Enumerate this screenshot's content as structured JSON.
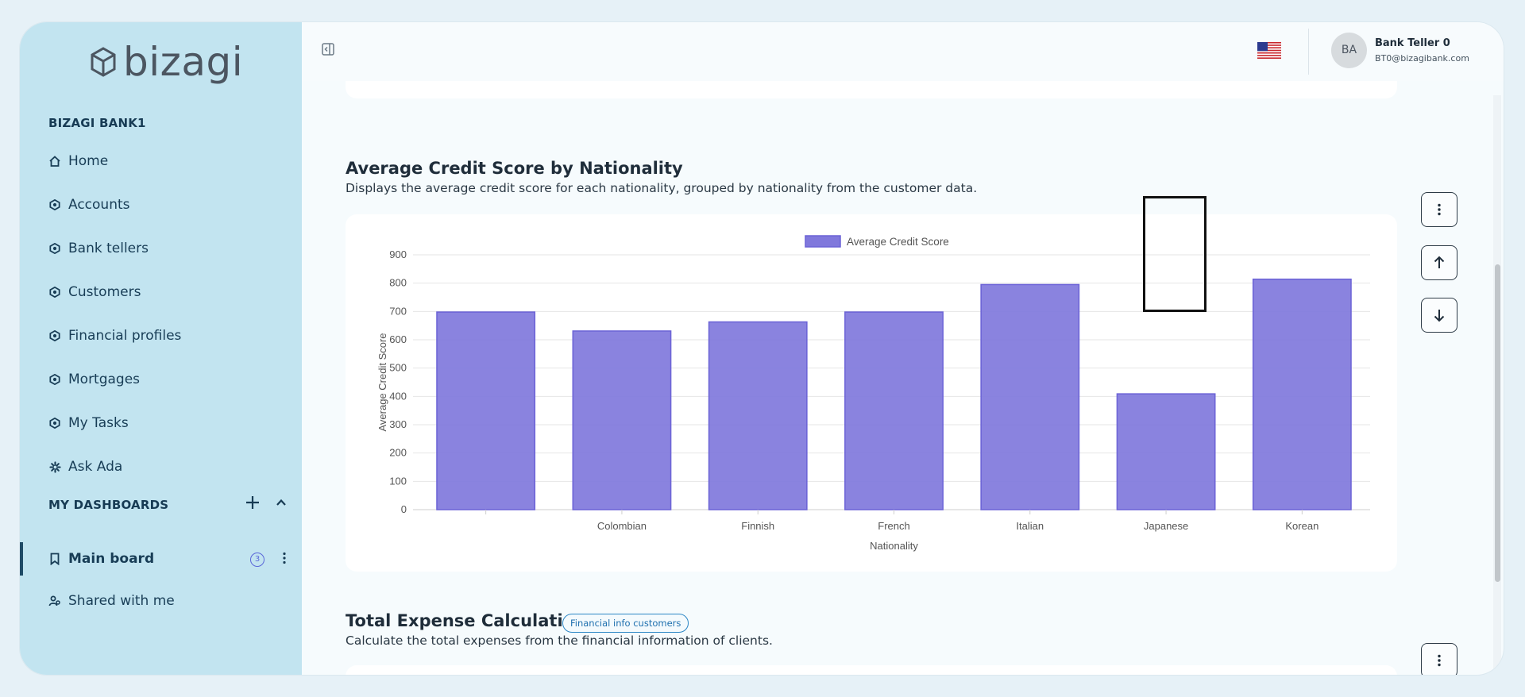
{
  "brand": {
    "name": "bizagi"
  },
  "sidebar": {
    "org": "BIZAGI BANK1",
    "items": [
      {
        "label": "Home",
        "icon": "home-icon"
      },
      {
        "label": "Accounts",
        "icon": "entity-icon"
      },
      {
        "label": "Bank tellers",
        "icon": "entity-icon"
      },
      {
        "label": "Customers",
        "icon": "entity-icon"
      },
      {
        "label": "Financial profiles",
        "icon": "entity-icon"
      },
      {
        "label": "Mortgages",
        "icon": "entity-icon"
      },
      {
        "label": "My Tasks",
        "icon": "entity-icon"
      },
      {
        "label": "Ask Ada",
        "icon": "sparkle-icon"
      }
    ],
    "dashboards_title": "MY DASHBOARDS",
    "main_board": {
      "label": "Main board",
      "count": "3"
    },
    "shared": {
      "label": "Shared with me"
    }
  },
  "user": {
    "initials": "BA",
    "name": "Bank Teller 0",
    "email": "BT0@bizagibank.com"
  },
  "widgets": {
    "credit": {
      "title": "Average Credit Score by Nationality",
      "description": "Displays the average credit score for each nationality, grouped by nationality from the customer data."
    },
    "expense": {
      "title": "Total Expense Calculation",
      "tag": "Financial info customers",
      "description": "Calculate the total expenses from the financial information of clients."
    }
  },
  "chart_data": {
    "type": "bar",
    "categories": [
      "",
      "Colombian",
      "Finnish",
      "French",
      "Italian",
      "Japanese",
      "Korean"
    ],
    "series": [
      {
        "name": "Average Credit Score",
        "values": [
          698,
          631,
          663,
          698,
          795,
          409,
          814
        ]
      }
    ],
    "xlabel": "Nationality",
    "ylabel": "Average Credit Score",
    "ylim": [
      0,
      900
    ],
    "yticks": [
      0,
      100,
      200,
      300,
      400,
      500,
      600,
      700,
      800,
      900
    ],
    "legend": "top-center",
    "grid": true,
    "bar_color": "#8078dc"
  }
}
